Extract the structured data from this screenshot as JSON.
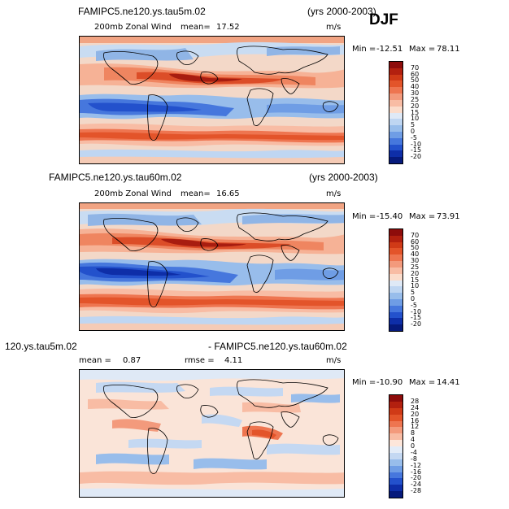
{
  "figure": {
    "season": "DJF"
  },
  "panels": [
    {
      "id": "panel-1",
      "case": "FAMIPC5.ne120.ys.tau5m.02",
      "years": "(yrs 2000-2003)",
      "field": "200mb Zonal Wind",
      "mean_label": "mean=",
      "mean_value": "17.52",
      "units": "m/s",
      "min_label": "Min =",
      "min_value": "-12.51",
      "max_label": "Max =",
      "max_value": "78.11",
      "levels": [
        "70",
        "60",
        "50",
        "40",
        "30",
        "25",
        "20",
        "15",
        "10",
        "5",
        "0",
        "-5",
        "-10",
        "-15",
        "-20"
      ],
      "colors": [
        "#8e0c0b",
        "#b3200f",
        "#d03a17",
        "#e3542a",
        "#ee7550",
        "#f39a7c",
        "#f8bca4",
        "#fbdccb",
        "#dfe9f6",
        "#bfd6f2",
        "#98bdeb",
        "#6f9de5",
        "#4677dd",
        "#2351cc",
        "#0e2ea8",
        "#061a7c"
      ]
    },
    {
      "id": "panel-2",
      "case": "FAMIPC5.ne120.ys.tau60m.02",
      "years": "(yrs 2000-2003)",
      "field": "200mb Zonal Wind",
      "mean_label": "mean=",
      "mean_value": "16.65",
      "units": "m/s",
      "min_label": "Min =",
      "min_value": "-15.40",
      "max_label": "Max =",
      "max_value": "73.91",
      "levels": [
        "70",
        "60",
        "50",
        "40",
        "30",
        "25",
        "20",
        "15",
        "10",
        "5",
        "0",
        "-5",
        "-10",
        "-15",
        "-20"
      ],
      "colors": [
        "#8e0c0b",
        "#b3200f",
        "#d03a17",
        "#e3542a",
        "#ee7550",
        "#f39a7c",
        "#f8bca4",
        "#fbdccb",
        "#dfe9f6",
        "#bfd6f2",
        "#98bdeb",
        "#6f9de5",
        "#4677dd",
        "#2351cc",
        "#0e2ea8",
        "#061a7c"
      ]
    },
    {
      "id": "panel-3",
      "case_left": "120.ys.tau5m.02",
      "case_right": "- FAMIPC5.ne120.ys.tau60m.02",
      "mean_label": "mean =",
      "mean_value": "0.87",
      "rmse_label": "rmse =",
      "rmse_value": "4.11",
      "units": "m/s",
      "min_label": "Min =",
      "min_value": "-10.90",
      "max_label": "Max =",
      "max_value": "14.41",
      "levels": [
        "28",
        "24",
        "20",
        "16",
        "12",
        "8",
        "4",
        "0",
        "-4",
        "-8",
        "-12",
        "-16",
        "-20",
        "-24",
        "-28"
      ],
      "colors": [
        "#8e0c0b",
        "#b3200f",
        "#d03a17",
        "#e3542a",
        "#ee7550",
        "#f39a7c",
        "#f8bca4",
        "#fde6da",
        "#e3ecf8",
        "#c4d8f2",
        "#98bdeb",
        "#6f9de5",
        "#4677dd",
        "#2351cc",
        "#0e2ea8",
        "#061a7c"
      ]
    }
  ]
}
